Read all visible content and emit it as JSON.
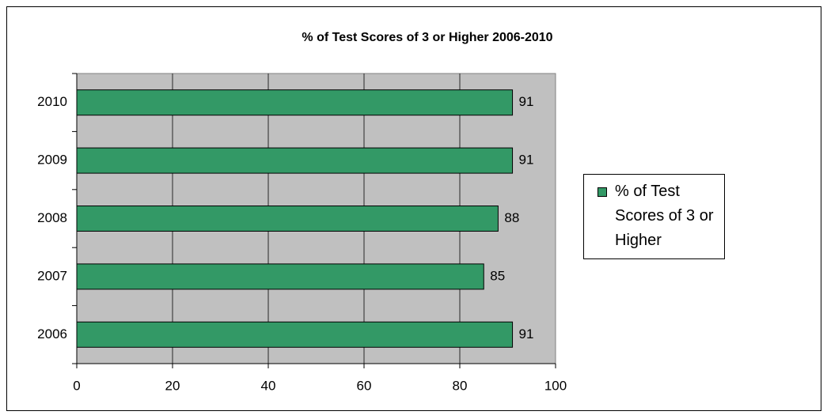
{
  "chart_data": {
    "type": "barh",
    "title": "% of Test Scores of 3 or Higher 2006-2010",
    "categories": [
      "2006",
      "2007",
      "2008",
      "2009",
      "2010"
    ],
    "series": [
      {
        "name": "% of Test Scores of 3 or Higher",
        "color": "#339966",
        "values": [
          91,
          85,
          88,
          91,
          91
        ]
      }
    ],
    "xlim": [
      0,
      100
    ],
    "xticks": [
      0,
      20,
      40,
      60,
      80,
      100
    ],
    "grid": true,
    "legend": "right"
  }
}
